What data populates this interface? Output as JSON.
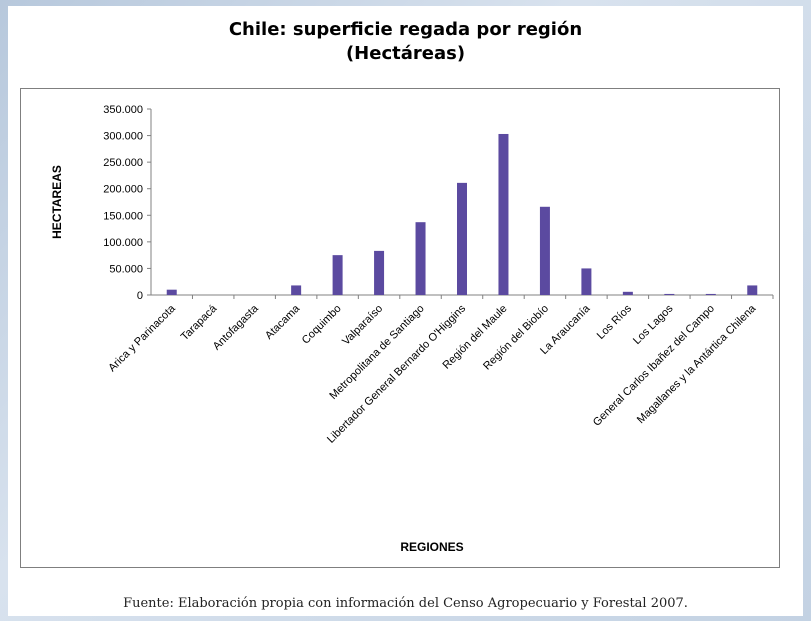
{
  "chart_data": {
    "type": "bar",
    "title_line1": "Chile: superficie regada por región",
    "title_line2": "(Hectáreas)",
    "xlabel": "REGIONES",
    "ylabel": "HECTAREAS",
    "ylim": [
      0,
      350000
    ],
    "yticks": [
      0,
      50000,
      100000,
      150000,
      200000,
      250000,
      300000,
      350000
    ],
    "ytick_labels": [
      "0",
      "50.000",
      "100.000",
      "150.000",
      "200.000",
      "250.000",
      "300.000",
      "350.000"
    ],
    "grid": false,
    "legend": "none",
    "bar_color": "#5b4aa0",
    "categories": [
      "Arica y Parinacota",
      "Tarapacá",
      "Antofagasta",
      "Atacama",
      "Coquimbo",
      "Valparaíso",
      "Metropolitana de Santiago",
      "Libertador General Bernardo O'Higgins",
      "Región del Maule",
      "Región del Biobío",
      "La Araucanía",
      "Los Ríos",
      "Los Lagos",
      "General Carlos Ibañez del Campo",
      "Magallanes y la Antártica Chilena"
    ],
    "values": [
      10000,
      0,
      0,
      18000,
      75000,
      83000,
      137000,
      211000,
      303000,
      166000,
      50000,
      6000,
      2000,
      2000,
      18000
    ]
  },
  "source": "Fuente: Elaboración propia con información del Censo Agropecuario y Forestal 2007."
}
